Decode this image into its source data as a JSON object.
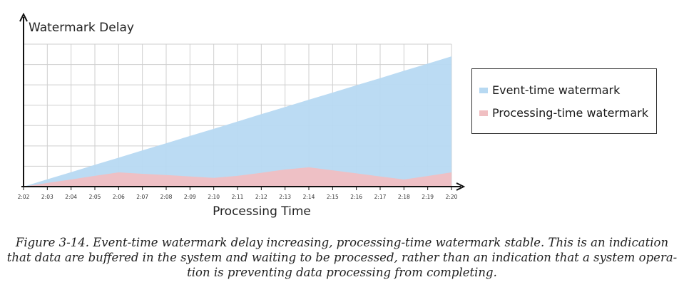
{
  "chart_data": {
    "type": "area",
    "ylabel": "Watermark Delay",
    "xlabel": "Processing Time",
    "x": [
      "2:02",
      "2:03",
      "2:04",
      "2:05",
      "2:06",
      "2:07",
      "2:08",
      "2:09",
      "2:10",
      "2:11",
      "2:12",
      "2:13",
      "2:14",
      "2:15",
      "2:16",
      "2:17",
      "2:18",
      "2:19",
      "2:20"
    ],
    "ylim": [
      0,
      7
    ],
    "grid": true,
    "legend_position": "right",
    "series": [
      {
        "name": "Event-time watermark",
        "color": "#b7d9f2",
        "values": [
          0,
          0.36,
          0.71,
          1.07,
          1.42,
          1.78,
          2.13,
          2.49,
          2.84,
          3.2,
          3.56,
          3.91,
          4.27,
          4.62,
          4.98,
          5.33,
          5.69,
          6.04,
          6.4
        ]
      },
      {
        "name": "Processing-time watermark",
        "color": "#f0bfc2",
        "values": [
          0,
          0.18,
          0.35,
          0.53,
          0.7,
          0.63,
          0.57,
          0.5,
          0.43,
          0.53,
          0.68,
          0.84,
          0.95,
          0.8,
          0.65,
          0.5,
          0.35,
          0.52,
          0.7
        ]
      }
    ]
  },
  "caption": {
    "lines": [
      "Figure 3-14. Event-time watermark delay increasing, processing-time watermark stable. This is an indication",
      "that data are buffered in the system and waiting to be processed, rather than an indication that a system opera-",
      "tion is preventing data processing from completing."
    ]
  }
}
